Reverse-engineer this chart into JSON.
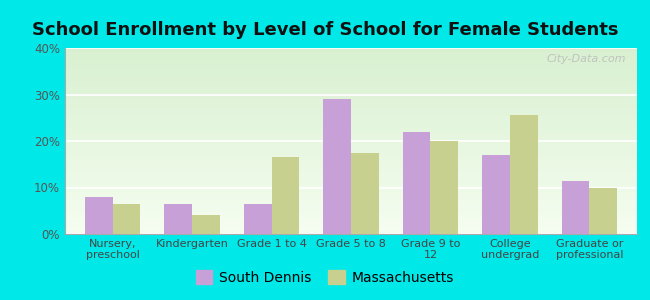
{
  "title": "School Enrollment by Level of School for Female Students",
  "categories": [
    "Nursery,\npreschool",
    "Kindergarten",
    "Grade 1 to 4",
    "Grade 5 to 8",
    "Grade 9 to\n12",
    "College\nundergrad",
    "Graduate or\nprofessional"
  ],
  "south_dennis": [
    8.0,
    6.5,
    6.5,
    29.0,
    22.0,
    17.0,
    11.5
  ],
  "massachusetts": [
    6.5,
    4.0,
    16.5,
    17.5,
    20.0,
    25.5,
    10.0
  ],
  "color_sd": "#c8a0d8",
  "color_ma": "#c8d090",
  "background_color": "#00e8e8",
  "ylim": [
    0,
    40
  ],
  "yticks": [
    0,
    10,
    20,
    30,
    40
  ],
  "bar_width": 0.35,
  "watermark": "City-Data.com",
  "title_fontsize": 13,
  "legend_fontsize": 10,
  "tick_fontsize": 8.5,
  "xtick_fontsize": 8
}
